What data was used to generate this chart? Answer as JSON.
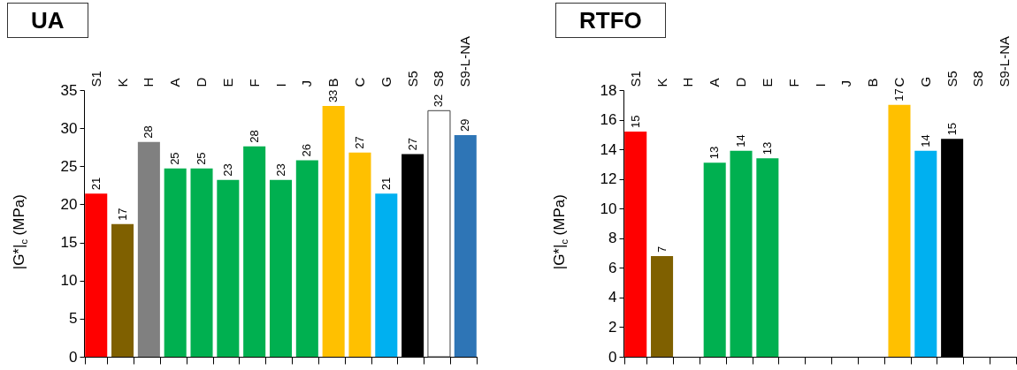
{
  "chart_data": [
    {
      "type": "bar",
      "title": "UA",
      "ylabel": "|G*|$_{c}$ (MPa)",
      "categories": [
        "S1",
        "K",
        "H",
        "A",
        "D",
        "E",
        "F",
        "I",
        "J",
        "B",
        "C",
        "G",
        "S5",
        "S8",
        "S9-L-NA"
      ],
      "values": [
        21.4,
        17.4,
        28.2,
        24.7,
        24.7,
        23.2,
        27.6,
        23.2,
        25.8,
        32.9,
        26.8,
        21.4,
        26.6,
        32.3,
        29.1
      ],
      "colors": [
        "#ff0000",
        "#7f6000",
        "#808080",
        "#00b050",
        "#00b050",
        "#00b050",
        "#00b050",
        "#00b050",
        "#00b050",
        "#ffc000",
        "#ffc000",
        "#00b0f0",
        "#000000",
        "#ffffff",
        "#2e75b6"
      ],
      "value_labels": [
        "21",
        "17",
        "28",
        "25",
        "25",
        "23",
        "28",
        "23",
        "26",
        "33",
        "27",
        "21",
        "27",
        "32",
        "29"
      ],
      "ylim": [
        0,
        35
      ],
      "yticks": [
        0,
        5,
        10,
        15,
        20,
        25,
        30,
        35
      ]
    },
    {
      "type": "bar",
      "title": "RTFO",
      "ylabel": "|G*|$_{c}$ (MPa)",
      "categories": [
        "S1",
        "K",
        "H",
        "A",
        "D",
        "E",
        "F",
        "I",
        "J",
        "B",
        "C",
        "G",
        "S5",
        "S8",
        "S9-L-NA"
      ],
      "values": [
        15.2,
        6.8,
        null,
        13.1,
        13.9,
        13.4,
        null,
        null,
        null,
        null,
        17.0,
        13.9,
        14.7,
        null,
        null
      ],
      "colors": [
        "#ff0000",
        "#7f6000",
        null,
        "#00b050",
        "#00b050",
        "#00b050",
        null,
        null,
        null,
        null,
        "#ffc000",
        "#00b0f0",
        "#000000",
        null,
        null
      ],
      "value_labels": [
        "15",
        "7",
        null,
        "13",
        "14",
        "13",
        null,
        null,
        null,
        null,
        "17",
        "14",
        "15",
        null,
        null
      ],
      "ylim": [
        0,
        18
      ],
      "yticks": [
        0,
        2,
        4,
        6,
        8,
        10,
        12,
        14,
        16,
        18
      ]
    }
  ]
}
